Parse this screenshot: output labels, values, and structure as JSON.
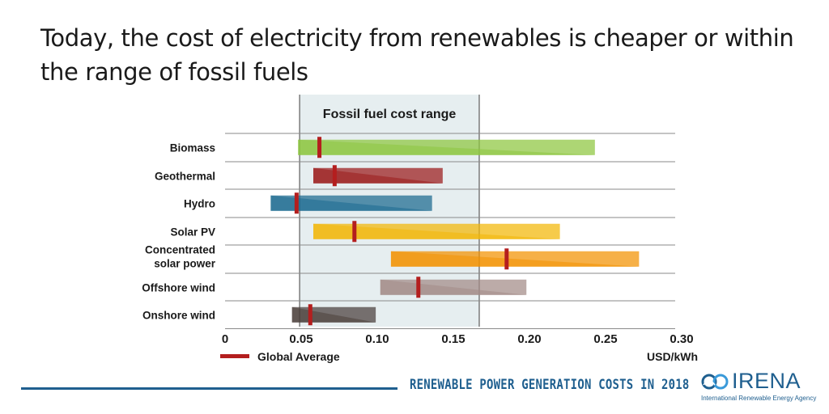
{
  "title_line1": "Today, the cost of electricity from renewables is cheaper or within",
  "title_line2": "the range of fossil fuels",
  "footer": {
    "report": "RENEWABLE POWER GENERATION COSTS IN 2018",
    "logo_name": "IRENA",
    "logo_tagline": "International Renewable Energy Agency"
  },
  "chart_data": {
    "type": "bar",
    "orientation": "horizontal",
    "shaded_region": {
      "label": "Fossil fuel cost range",
      "from": 0.049,
      "to": 0.167
    },
    "categories": [
      "Biomass",
      "Geothermal",
      "Hydro",
      "Solar PV",
      "Concentrated solar power",
      "Offshore wind",
      "Onshore wind"
    ],
    "label_lines": [
      [
        "Biomass"
      ],
      [
        "Geothermal"
      ],
      [
        "Hydro"
      ],
      [
        "Solar PV"
      ],
      [
        "Concentrated",
        "solar power"
      ],
      [
        "Offshore wind"
      ],
      [
        "Onshore wind"
      ]
    ],
    "range_low": [
      0.048,
      0.058,
      0.03,
      0.058,
      0.109,
      0.102,
      0.044
    ],
    "range_high": [
      0.243,
      0.143,
      0.136,
      0.22,
      0.272,
      0.198,
      0.099
    ],
    "global_average": [
      0.062,
      0.072,
      0.047,
      0.085,
      0.185,
      0.127,
      0.056
    ],
    "colors": [
      "#8dc63f",
      "#9b1b1b",
      "#1b6a8f",
      "#f2b705",
      "#f39200",
      "#a28a86",
      "#4a3f3b"
    ],
    "average_color": "#b41e1e",
    "xlim": [
      0,
      0.3
    ],
    "xticks": [
      "0",
      "0.05",
      "0.10",
      "0.15",
      "0.20",
      "0.25",
      "0.30"
    ],
    "xtick_values": [
      0,
      0.05,
      0.1,
      0.15,
      0.2,
      0.25,
      0.3
    ],
    "xlabel": "USD/kWh",
    "legend": "Global Average",
    "legend_position": "bottom-left"
  }
}
